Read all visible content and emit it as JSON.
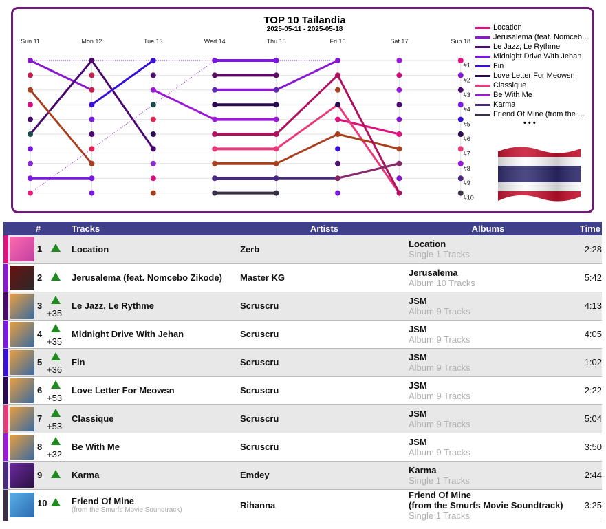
{
  "chart_data": {
    "type": "line",
    "title": "TOP 10 Tailandia",
    "subtitle": "2025-05-11 - 2025-05-18",
    "categories": [
      "Sun 11",
      "Mon 12",
      "Tue 13",
      "Wed 14",
      "Thu 15",
      "Fri 16",
      "Sat 17",
      "Sun 18"
    ],
    "rank_labels": [
      "#1",
      "#2",
      "#3",
      "#4",
      "#5",
      "#6",
      "#7",
      "#8",
      "#9",
      "#10"
    ],
    "y_axis": "rank",
    "ylim": [
      1,
      10
    ],
    "inverted": true,
    "legend_position": "right",
    "legend_more": "• • •",
    "series": [
      {
        "name": "Location",
        "color": "#e0117f",
        "values": [
          null,
          null,
          null,
          null,
          null,
          5,
          6,
          null
        ]
      },
      {
        "name": "Jerusalema (feat. Nomcebo Zikode)",
        "color": "#8a1ad0",
        "values": [
          1,
          3,
          null,
          3,
          3,
          1,
          null,
          null
        ]
      },
      {
        "name": "Le Jazz, Le Rythme",
        "color": "#4a0a70",
        "values": [
          6,
          1,
          7,
          null,
          null,
          null,
          null,
          null
        ]
      },
      {
        "name": "Midnight Drive With Jehan",
        "color": "#7a1ae0",
        "values": [
          9,
          9,
          null,
          1,
          1,
          null,
          null,
          null
        ]
      },
      {
        "name": "Fin",
        "color": "#3a10d8",
        "values": [
          null,
          4,
          1,
          null,
          null,
          null,
          null,
          null
        ]
      },
      {
        "name": "Love Letter For Meowsn",
        "color": "#2a0a50",
        "values": [
          null,
          null,
          null,
          4,
          4,
          null,
          null,
          null
        ]
      },
      {
        "name": "Classique",
        "color": "#e83a7a",
        "values": [
          null,
          null,
          null,
          7,
          7,
          4,
          10,
          null
        ]
      },
      {
        "name": "Be With Me",
        "color": "#9a1ad8",
        "values": [
          10,
          null,
          3,
          5,
          5,
          null,
          null,
          null
        ]
      },
      {
        "name": "Karma",
        "color": "#4a2a80",
        "values": [
          null,
          null,
          null,
          9,
          9,
          9,
          8,
          null
        ]
      },
      {
        "name": "Friend Of Mine (from the Smurfs Movie Soundtrack)",
        "color": "#3a3048",
        "values": [
          null,
          null,
          null,
          10,
          10,
          null,
          null,
          null
        ]
      },
      {
        "name": "",
        "color": "#a84020",
        "values": [
          3,
          8,
          null,
          8,
          8,
          6,
          7,
          null
        ]
      },
      {
        "name": "",
        "color": "#5a0a60",
        "values": [
          null,
          null,
          null,
          2,
          2,
          null,
          null,
          null
        ]
      },
      {
        "name": "",
        "color": "#b01060",
        "values": [
          null,
          null,
          null,
          6,
          6,
          2,
          10,
          null
        ]
      },
      {
        "name": "",
        "color": "#8a2a6a",
        "values": [
          null,
          null,
          null,
          null,
          null,
          9,
          8,
          null
        ]
      }
    ],
    "dot_colors": [
      [
        "#8a1ad0",
        "#c02050",
        "#a84020",
        "#d01080",
        "#4a0a70",
        "#1a4a4a",
        "#7a1ae0",
        "#8a2ad0",
        "#7a1ae0",
        "#e0207a"
      ],
      [
        "#4a0a70",
        "#c02050",
        "#c02050",
        "#3a10d8",
        "#7a1ae0",
        "#4a0a70",
        "#e02050",
        "#a84020",
        "#7a1ae0",
        "#7a1ae0"
      ],
      [
        "#3a10d8",
        "#4a0a70",
        "#9a1ad8",
        "#1a4a4a",
        "#e02050",
        "#2a0a50",
        "#4a0a70",
        "#8a2ad0",
        "#d01080",
        "#a84020"
      ],
      [
        "#7a1ae0",
        "#5a0a60",
        "#5a2ab0",
        "#2a0a50",
        "#9a1ad8",
        "#b01060",
        "#e83a7a",
        "#a84020",
        "#4a2a80",
        "#3a3048"
      ],
      [
        "#7a1ae0",
        "#5a0a60",
        "#5a2ab0",
        "#2a0a50",
        "#9a1ad8",
        "#b01060",
        "#e83a7a",
        "#a84020",
        "#4a2a80",
        "#3a3048"
      ],
      [
        "#8a1ad0",
        "#b01060",
        "#a84020",
        "#2a0a50",
        "#e0117f",
        "#a84020",
        "#3a10d8",
        "#4a0a70",
        "#8a2a6a",
        "#7a1ae0"
      ],
      [
        "#9a1ad8",
        "#d01080",
        "#9a1ad8",
        "#4a0a70",
        "#8a1ad0",
        "#e0117f",
        "#a84020",
        "#8a2a6a",
        "#8a1ad0",
        "#b01060"
      ],
      [
        "#e0117f",
        "#8a1ad0",
        "#4a0a70",
        "#7a1ae0",
        "#3a10d8",
        "#2a0a50",
        "#e83a7a",
        "#9a1ad8",
        "#4a2a80",
        "#3a3048"
      ]
    ]
  },
  "table": {
    "headers": {
      "rank": "#",
      "tracks": "Tracks",
      "artists": "Artists",
      "albums": "Albums",
      "time": "Time"
    },
    "rows": [
      {
        "rank": "1",
        "delta": "",
        "title": "Location",
        "subtitle": "",
        "artist": "Zerb",
        "album": "Location",
        "album_info": "Single 1 Tracks",
        "time": "2:28",
        "color": "#e0117f",
        "cover": [
          "#ff6ab0",
          "#c040a0"
        ]
      },
      {
        "rank": "2",
        "delta": "",
        "title": "Jerusalema (feat. Nomcebo Zikode)",
        "subtitle": "",
        "artist": "Master KG",
        "album": "Jerusalema",
        "album_info": "Album 10 Tracks",
        "time": "5:42",
        "color": "#8a1ad0",
        "cover": [
          "#6a1010",
          "#2a2a2a"
        ]
      },
      {
        "rank": "3",
        "delta": "+35",
        "title": "Le Jazz, Le Rythme",
        "subtitle": "",
        "artist": "Scruscru",
        "album": "JSM",
        "album_info": "Album 9 Tracks",
        "time": "4:13",
        "color": "#4a0a70",
        "cover": [
          "#e8a040",
          "#3a6aa0"
        ]
      },
      {
        "rank": "4",
        "delta": "+35",
        "title": "Midnight Drive With Jehan",
        "subtitle": "",
        "artist": "Scruscru",
        "album": "JSM",
        "album_info": "Album 9 Tracks",
        "time": "4:05",
        "color": "#7a1ae0",
        "cover": [
          "#e8a040",
          "#3a6aa0"
        ]
      },
      {
        "rank": "5",
        "delta": "+36",
        "title": "Fin",
        "subtitle": "",
        "artist": "Scruscru",
        "album": "JSM",
        "album_info": "Album 9 Tracks",
        "time": "1:02",
        "color": "#3a10d8",
        "cover": [
          "#e8a040",
          "#3a6aa0"
        ]
      },
      {
        "rank": "6",
        "delta": "+53",
        "title": "Love Letter For Meowsn",
        "subtitle": "",
        "artist": "Scruscru",
        "album": "JSM",
        "album_info": "Album 9 Tracks",
        "time": "2:22",
        "color": "#2a0a50",
        "cover": [
          "#e8a040",
          "#3a6aa0"
        ]
      },
      {
        "rank": "7",
        "delta": "+53",
        "title": "Classique",
        "subtitle": "",
        "artist": "Scruscru",
        "album": "JSM",
        "album_info": "Album 9 Tracks",
        "time": "5:04",
        "color": "#e83a7a",
        "cover": [
          "#e8a040",
          "#3a6aa0"
        ]
      },
      {
        "rank": "8",
        "delta": "+32",
        "title": "Be With Me",
        "subtitle": "",
        "artist": "Scruscru",
        "album": "JSM",
        "album_info": "Album 9 Tracks",
        "time": "3:50",
        "color": "#9a1ad8",
        "cover": [
          "#e8a040",
          "#3a6aa0"
        ]
      },
      {
        "rank": "9",
        "delta": "",
        "title": "Karma",
        "subtitle": "",
        "artist": "Emdey",
        "album": "Karma",
        "album_info": "Single 1 Tracks",
        "time": "2:44",
        "color": "#4a2a80",
        "cover": [
          "#6a2aa0",
          "#2a1040"
        ]
      },
      {
        "rank": "10",
        "delta": "",
        "title": "Friend Of Mine",
        "subtitle": "(from the Smurfs Movie Soundtrack)",
        "artist": "Rihanna",
        "album": "Friend Of Mine\n(from the Smurfs Movie Soundtrack)",
        "album_info": "Single 1 Tracks",
        "time": "3:25",
        "color": "#3a3048",
        "cover": [
          "#5ab0e8",
          "#2a6ab0"
        ]
      }
    ]
  },
  "colors": {
    "header_bg": "#3f3f8c",
    "frame": "#6e1a78",
    "up_arrow": "#1f8a1f"
  }
}
